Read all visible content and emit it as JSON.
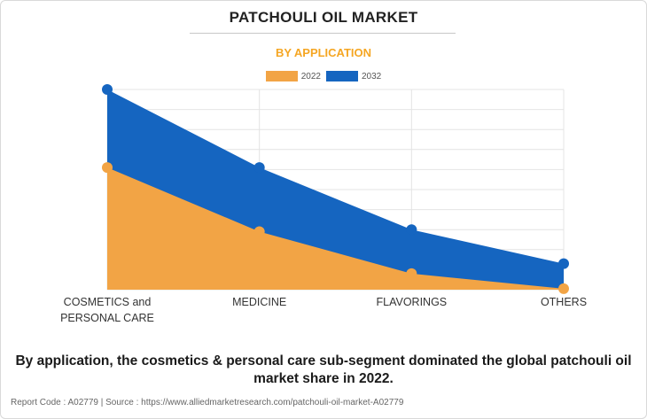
{
  "page": {
    "title": "PATCHOULI OIL MARKET",
    "subtitle": "BY APPLICATION",
    "caption": "By application, the cosmetics & personal care sub-segment dominated the global patchouli oil market share in 2022.",
    "footer_report": "Report Code : A02779",
    "footer_sep": "|",
    "footer_source": "Source : https://www.alliedmarketresearch.com/patchouli-oil-market-A02779"
  },
  "colors": {
    "accent": "#f5a623",
    "series_2022": "#f2a445",
    "series_2032": "#1565c0",
    "title": "#222222",
    "grid": "#e4e4e4"
  },
  "chart_data": {
    "type": "area",
    "title": "PATCHOULI OIL MARKET",
    "subtitle": "BY APPLICATION",
    "categories": [
      "COSMETICS and PERSONAL CARE",
      "MEDICINE",
      "FLAVORINGS",
      "OTHERS"
    ],
    "category_lines": [
      [
        "COSMETICS and",
        "PERSONAL CARE"
      ],
      [
        "MEDICINE"
      ],
      [
        "FLAVORINGS"
      ],
      [
        "OTHERS"
      ]
    ],
    "series": [
      {
        "name": "2022",
        "values": [
          61,
          29,
          8,
          0.5
        ]
      },
      {
        "name": "2032",
        "values": [
          100,
          61,
          30,
          13
        ]
      }
    ],
    "xlabel": "",
    "ylabel": "",
    "ylim": [
      0,
      100
    ],
    "y_axis_labels_shown": false,
    "grid": true,
    "legend_position": "top-center",
    "stacked": false
  }
}
